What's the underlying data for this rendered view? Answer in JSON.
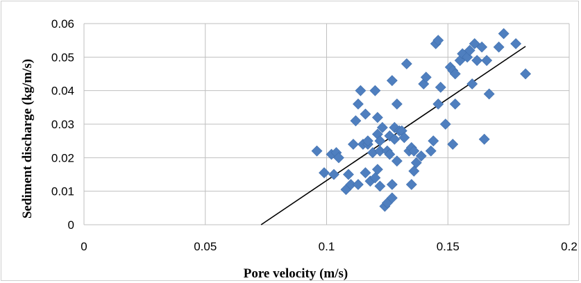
{
  "chart_data": {
    "type": "scatter",
    "xlabel": "Pore velocity (m/s)",
    "ylabel": "Sediment discharge (kg/m/s)",
    "xlim": [
      0,
      0.2
    ],
    "ylim": [
      0,
      0.06
    ],
    "x_ticks": [
      "0",
      "0.05",
      "0.1",
      "0.15",
      "0.2"
    ],
    "y_ticks": [
      "0",
      "0.01",
      "0.02",
      "0.03",
      "0.04",
      "0.05",
      "0.06"
    ],
    "x_tick_values": [
      0,
      0.05,
      0.1,
      0.15,
      0.2
    ],
    "y_tick_values": [
      0,
      0.01,
      0.02,
      0.03,
      0.04,
      0.05,
      0.06
    ],
    "grid": true,
    "marker": "diamond",
    "marker_color": "#4f7fbf",
    "trendline": {
      "x": [
        0.073,
        0.182
      ],
      "y": [
        0.0,
        0.0532
      ],
      "color": "#000000"
    },
    "points": [
      [
        0.096,
        0.022
      ],
      [
        0.099,
        0.0155
      ],
      [
        0.102,
        0.021
      ],
      [
        0.103,
        0.015
      ],
      [
        0.104,
        0.0215
      ],
      [
        0.105,
        0.02
      ],
      [
        0.108,
        0.0105
      ],
      [
        0.109,
        0.015
      ],
      [
        0.11,
        0.012
      ],
      [
        0.111,
        0.024
      ],
      [
        0.112,
        0.031
      ],
      [
        0.113,
        0.012
      ],
      [
        0.113,
        0.036
      ],
      [
        0.114,
        0.04
      ],
      [
        0.115,
        0.024
      ],
      [
        0.116,
        0.0155
      ],
      [
        0.116,
        0.033
      ],
      [
        0.117,
        0.024
      ],
      [
        0.117,
        0.025
      ],
      [
        0.118,
        0.013
      ],
      [
        0.119,
        0.0215
      ],
      [
        0.12,
        0.014
      ],
      [
        0.12,
        0.04
      ],
      [
        0.121,
        0.032
      ],
      [
        0.121,
        0.027
      ],
      [
        0.121,
        0.0165
      ],
      [
        0.122,
        0.025
      ],
      [
        0.122,
        0.022
      ],
      [
        0.122,
        0.0115
      ],
      [
        0.123,
        0.029
      ],
      [
        0.124,
        0.0055
      ],
      [
        0.125,
        0.0065
      ],
      [
        0.125,
        0.022
      ],
      [
        0.126,
        0.021
      ],
      [
        0.126,
        0.0265
      ],
      [
        0.127,
        0.008
      ],
      [
        0.127,
        0.043
      ],
      [
        0.127,
        0.012
      ],
      [
        0.128,
        0.029
      ],
      [
        0.128,
        0.0255
      ],
      [
        0.129,
        0.019
      ],
      [
        0.129,
        0.036
      ],
      [
        0.13,
        0.028
      ],
      [
        0.131,
        0.028
      ],
      [
        0.132,
        0.026
      ],
      [
        0.133,
        0.048
      ],
      [
        0.134,
        0.022
      ],
      [
        0.135,
        0.023
      ],
      [
        0.135,
        0.012
      ],
      [
        0.136,
        0.016
      ],
      [
        0.136,
        0.022
      ],
      [
        0.137,
        0.0185
      ],
      [
        0.139,
        0.0205
      ],
      [
        0.14,
        0.042
      ],
      [
        0.141,
        0.044
      ],
      [
        0.143,
        0.022
      ],
      [
        0.144,
        0.025
      ],
      [
        0.145,
        0.054
      ],
      [
        0.146,
        0.055
      ],
      [
        0.146,
        0.036
      ],
      [
        0.147,
        0.041
      ],
      [
        0.149,
        0.03
      ],
      [
        0.151,
        0.047
      ],
      [
        0.152,
        0.024
      ],
      [
        0.152,
        0.046
      ],
      [
        0.153,
        0.045
      ],
      [
        0.153,
        0.036
      ],
      [
        0.155,
        0.049
      ],
      [
        0.156,
        0.051
      ],
      [
        0.158,
        0.05
      ],
      [
        0.159,
        0.052
      ],
      [
        0.16,
        0.042
      ],
      [
        0.161,
        0.054
      ],
      [
        0.162,
        0.049
      ],
      [
        0.164,
        0.053
      ],
      [
        0.165,
        0.0255
      ],
      [
        0.166,
        0.049
      ],
      [
        0.167,
        0.039
      ],
      [
        0.171,
        0.053
      ],
      [
        0.173,
        0.057
      ],
      [
        0.178,
        0.054
      ],
      [
        0.182,
        0.045
      ]
    ]
  }
}
